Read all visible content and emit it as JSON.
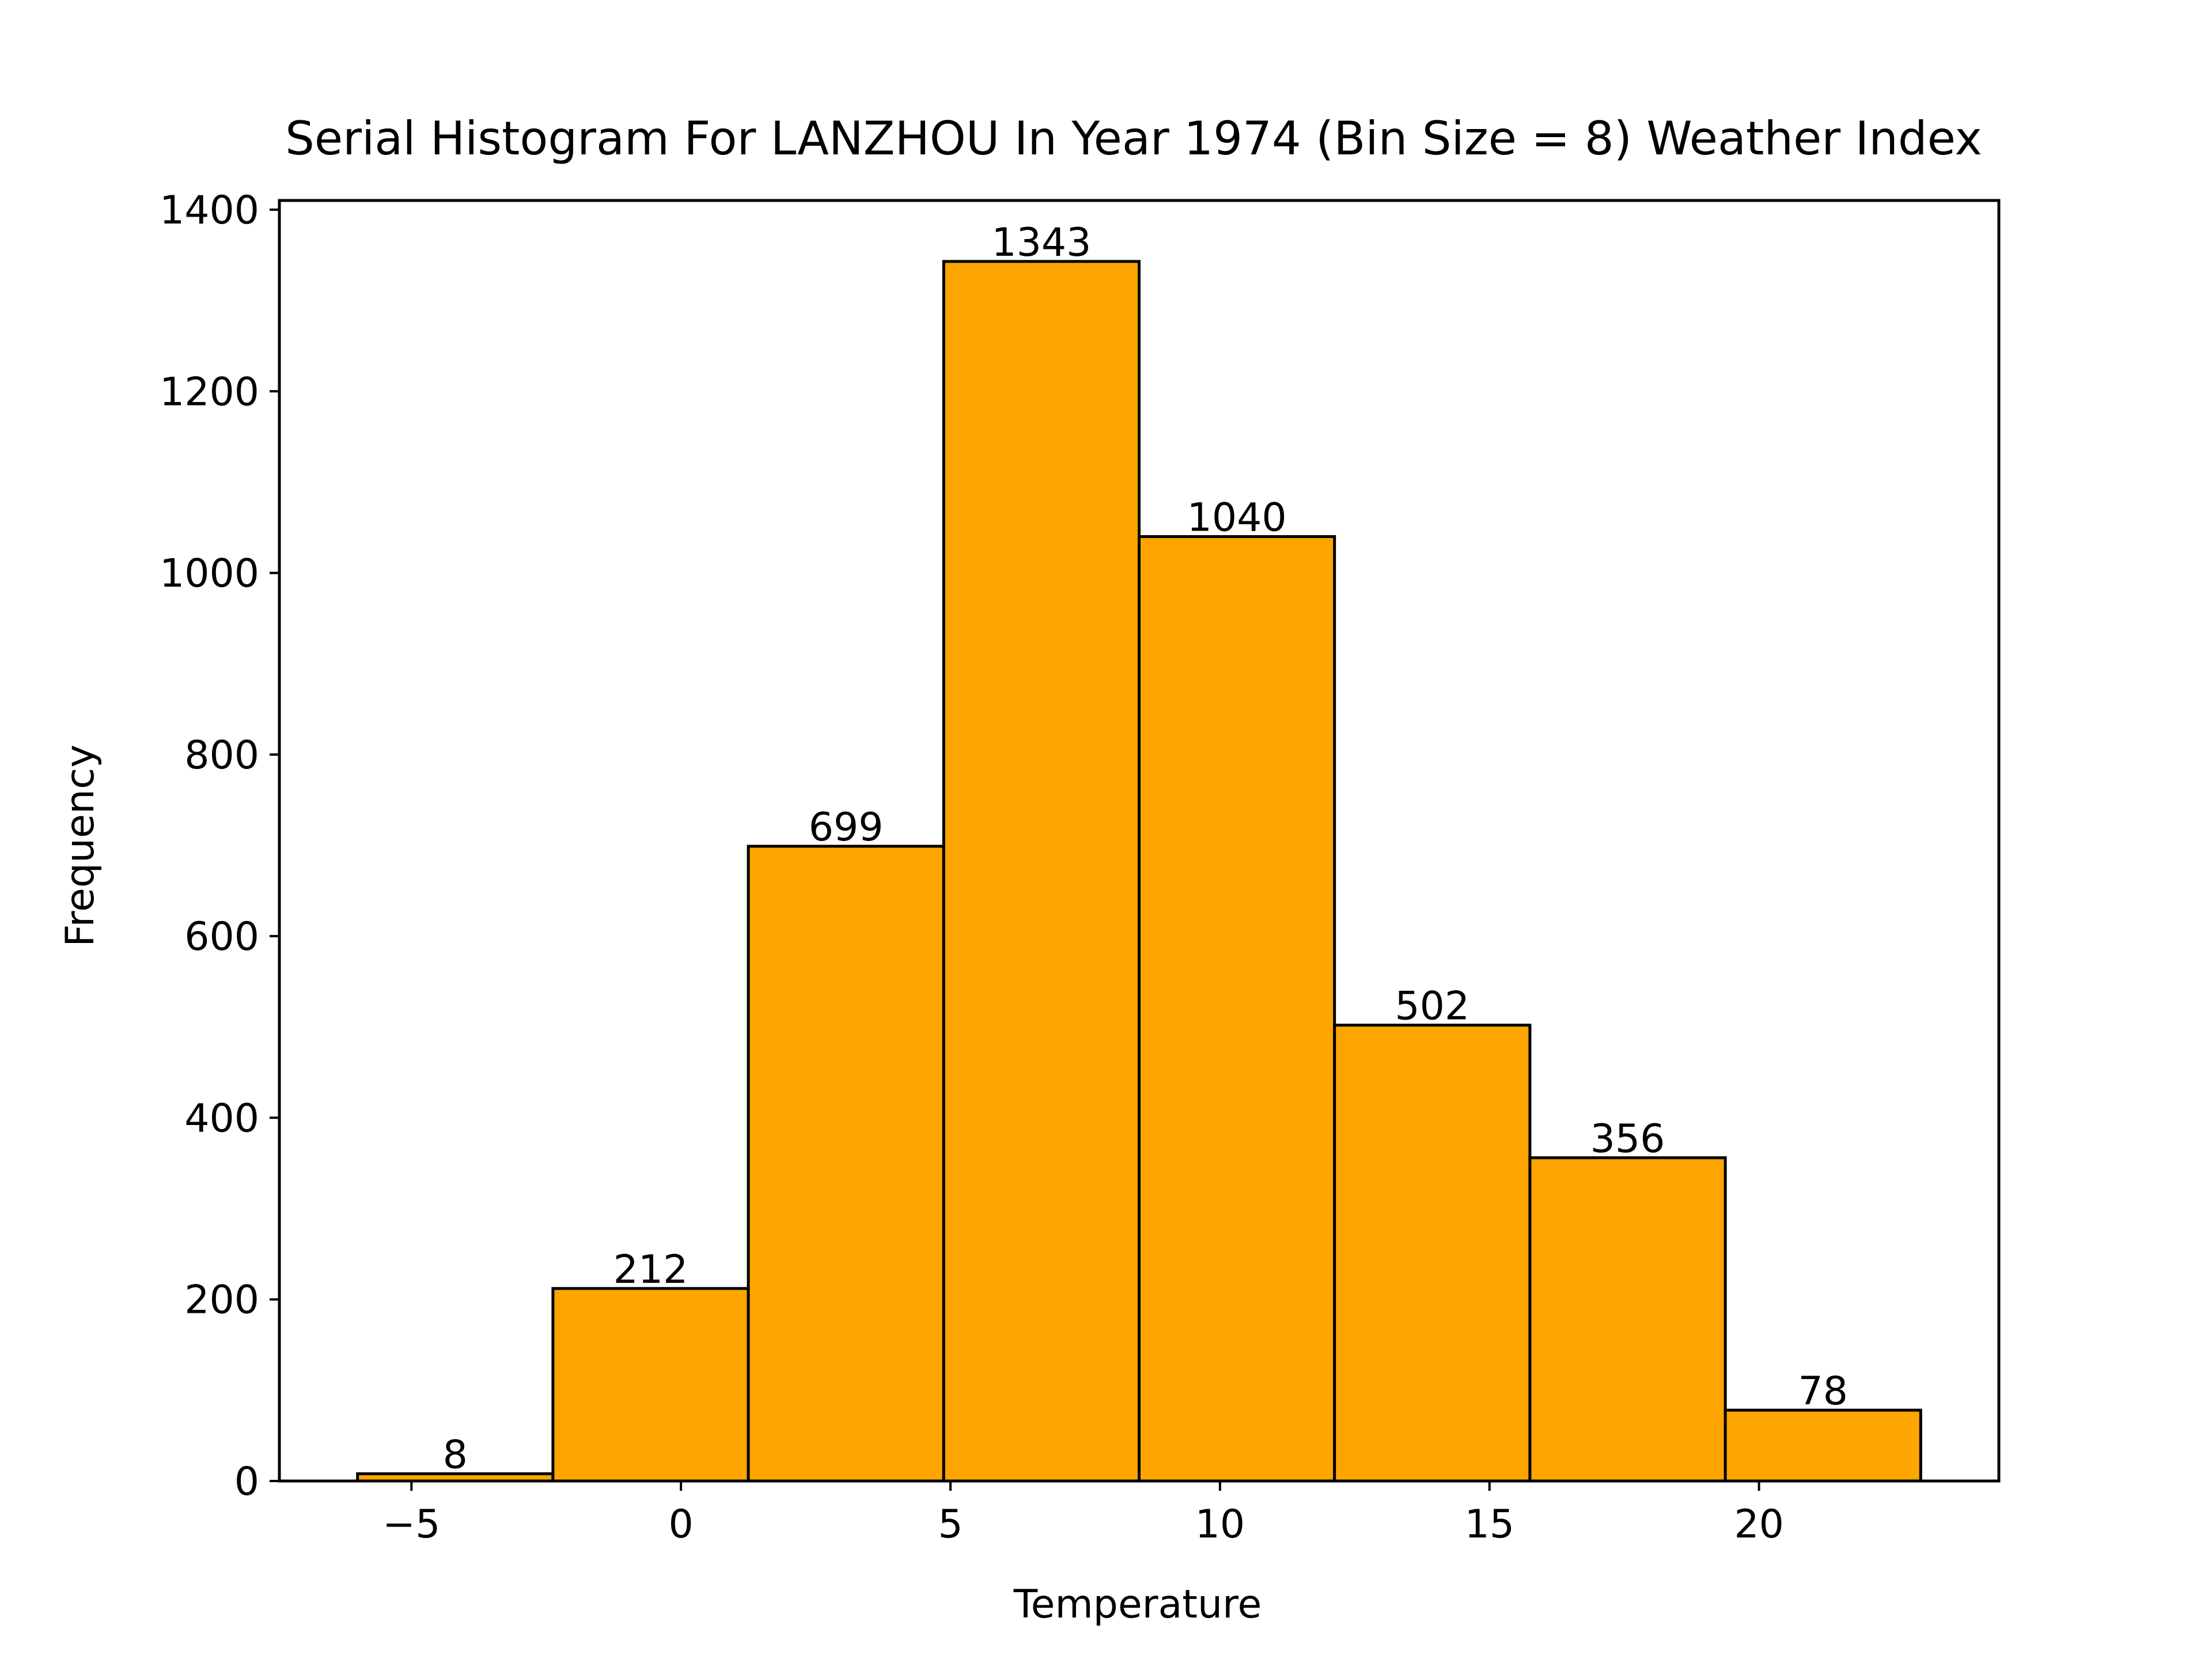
{
  "chart_data": {
    "type": "bar",
    "title": "Serial Histogram For LANZHOU In Year 1974 (Bin Size = 8) Weather Index",
    "xlabel": "Temperature",
    "ylabel": "Frequency",
    "bins": [
      {
        "start": -6.0,
        "end": -2.375,
        "value": 8
      },
      {
        "start": -2.375,
        "end": 1.25,
        "value": 212
      },
      {
        "start": 1.25,
        "end": 4.875,
        "value": 699
      },
      {
        "start": 4.875,
        "end": 8.5,
        "value": 1343
      },
      {
        "start": 8.5,
        "end": 12.125,
        "value": 1040
      },
      {
        "start": 12.125,
        "end": 15.75,
        "value": 502
      },
      {
        "start": 15.75,
        "end": 19.375,
        "value": 356
      },
      {
        "start": 19.375,
        "end": 23.0,
        "value": 78
      }
    ],
    "value_labels": [
      "8",
      "212",
      "699",
      "1343",
      "1040",
      "502",
      "356",
      "78"
    ],
    "xlim": [
      -7.45,
      24.45
    ],
    "ylim": [
      0,
      1410.15
    ],
    "xticks": [
      {
        "value": -5,
        "label": "−5"
      },
      {
        "value": 0,
        "label": "0"
      },
      {
        "value": 5,
        "label": "5"
      },
      {
        "value": 10,
        "label": "10"
      },
      {
        "value": 15,
        "label": "15"
      },
      {
        "value": 20,
        "label": "20"
      }
    ],
    "yticks": [
      {
        "value": 0,
        "label": "0"
      },
      {
        "value": 200,
        "label": "200"
      },
      {
        "value": 400,
        "label": "400"
      },
      {
        "value": 600,
        "label": "600"
      },
      {
        "value": 800,
        "label": "800"
      },
      {
        "value": 1000,
        "label": "1000"
      },
      {
        "value": 1200,
        "label": "1200"
      },
      {
        "value": 1400,
        "label": "1400"
      }
    ],
    "grid": false,
    "colors": {
      "bar_fill": "#FFA500",
      "bar_edge": "#000000",
      "text": "#000000",
      "background": "#FFFFFF"
    }
  }
}
